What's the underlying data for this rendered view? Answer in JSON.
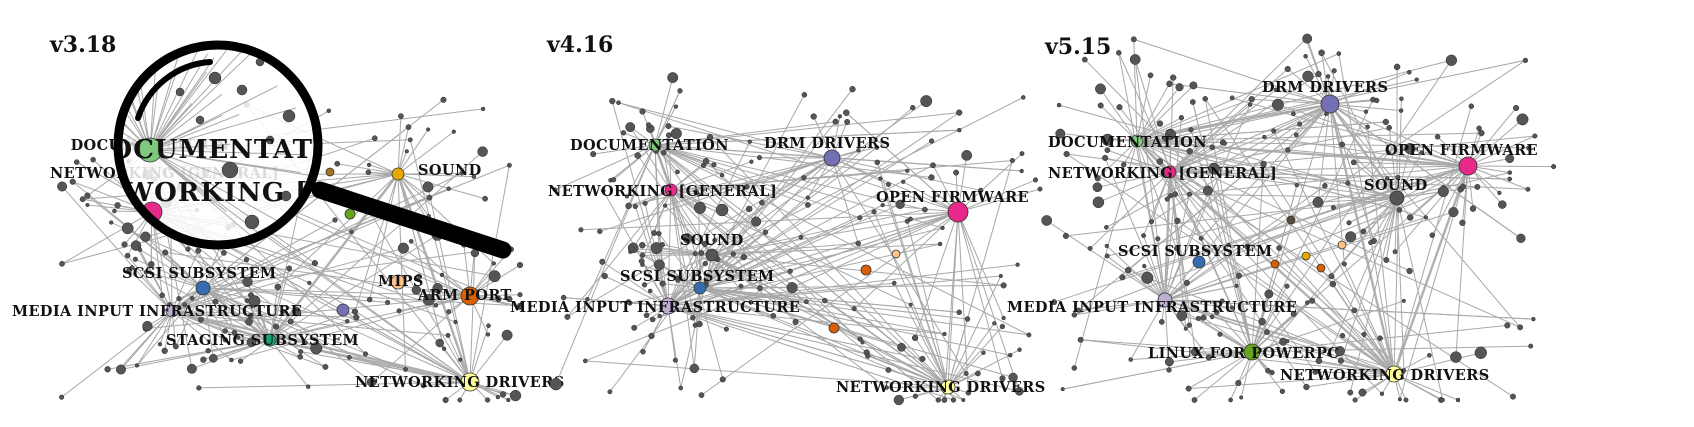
{
  "panels": [
    {
      "version": "v3.18",
      "nodes": [
        {
          "id": "doc",
          "label": "DOCUMENTATION",
          "color": "#7fc97f"
        },
        {
          "id": "net",
          "label": "NETWORKING [GENERAL]",
          "color": "#e7298a"
        },
        {
          "id": "sound",
          "label": "SOUND",
          "color": "#e6ab02"
        },
        {
          "id": "scsi",
          "label": "SCSI SUBSYSTEM",
          "color": "#386cb0"
        },
        {
          "id": "mips",
          "label": "MIPS",
          "color": "#fdc086"
        },
        {
          "id": "arm",
          "label": "ARM PORT",
          "color": "#d95f02"
        },
        {
          "id": "media",
          "label": "MEDIA INPUT INFRASTRUCTURE",
          "color": "#beaed4"
        },
        {
          "id": "staging",
          "label": "STAGING SUBSYSTEM",
          "color": "#1b9e77"
        },
        {
          "id": "netdrv",
          "label": "NETWORKING DRIVERS",
          "color": "#ffff99"
        },
        {
          "id": "x1",
          "label": "",
          "color": "#7570b3"
        },
        {
          "id": "x2",
          "label": "",
          "color": "#66a61e"
        },
        {
          "id": "x3",
          "label": "",
          "color": "#a6761d"
        }
      ],
      "magnifier": {
        "lines": [
          "DOCUMENTATION",
          "NETWORKING [GENERAL]"
        ]
      }
    },
    {
      "version": "v4.16",
      "nodes": [
        {
          "id": "doc",
          "label": "DOCUMENTATION",
          "color": "#7fc97f"
        },
        {
          "id": "drm",
          "label": "DRM DRIVERS",
          "color": "#7570b3"
        },
        {
          "id": "net",
          "label": "NETWORKING [GENERAL]",
          "color": "#e7298a"
        },
        {
          "id": "of",
          "label": "OPEN FIRMWARE",
          "color": "#e7298a"
        },
        {
          "id": "sound",
          "label": "SOUND",
          "color": "#555555"
        },
        {
          "id": "scsi",
          "label": "SCSI SUBSYSTEM",
          "color": "#386cb0"
        },
        {
          "id": "media",
          "label": "MEDIA INPUT INFRASTRUCTURE",
          "color": "#beaed4"
        },
        {
          "id": "netdrv",
          "label": "NETWORKING DRIVERS",
          "color": "#ffff99"
        },
        {
          "id": "x1",
          "label": "",
          "color": "#d95f02"
        },
        {
          "id": "x2",
          "label": "",
          "color": "#fdc086"
        },
        {
          "id": "x3",
          "label": "",
          "color": "#d95f02"
        }
      ]
    },
    {
      "version": "v5.15",
      "nodes": [
        {
          "id": "drm",
          "label": "DRM DRIVERS",
          "color": "#7570b3"
        },
        {
          "id": "doc",
          "label": "DOCUMENTATION",
          "color": "#7fc97f"
        },
        {
          "id": "of",
          "label": "OPEN FIRMWARE",
          "color": "#e7298a"
        },
        {
          "id": "net",
          "label": "NETWORKING [GENERAL]",
          "color": "#e7298a"
        },
        {
          "id": "sound",
          "label": "SOUND",
          "color": "#555555"
        },
        {
          "id": "scsi",
          "label": "SCSI SUBSYSTEM",
          "color": "#386cb0"
        },
        {
          "id": "media",
          "label": "MEDIA INPUT INFRASTRUCTURE",
          "color": "#beaed4"
        },
        {
          "id": "ppc",
          "label": "LINUX FOR POWERPC",
          "color": "#66a61e"
        },
        {
          "id": "netdrv",
          "label": "NETWORKING DRIVERS",
          "color": "#ffff99"
        },
        {
          "id": "x1",
          "label": "",
          "color": "#d95f02"
        },
        {
          "id": "x2",
          "label": "",
          "color": "#e6ab02"
        },
        {
          "id": "x3",
          "label": "",
          "color": "#fdc086"
        },
        {
          "id": "x4",
          "label": "",
          "color": "#d95f02"
        },
        {
          "id": "x5",
          "label": "",
          "color": "#5a4a3a"
        }
      ]
    }
  ],
  "colors": {
    "edge": "#a8a8a8",
    "leaf": "#555555",
    "magnifier": "#000000"
  },
  "icons": {
    "magnifier": "magnifying-glass-icon"
  }
}
